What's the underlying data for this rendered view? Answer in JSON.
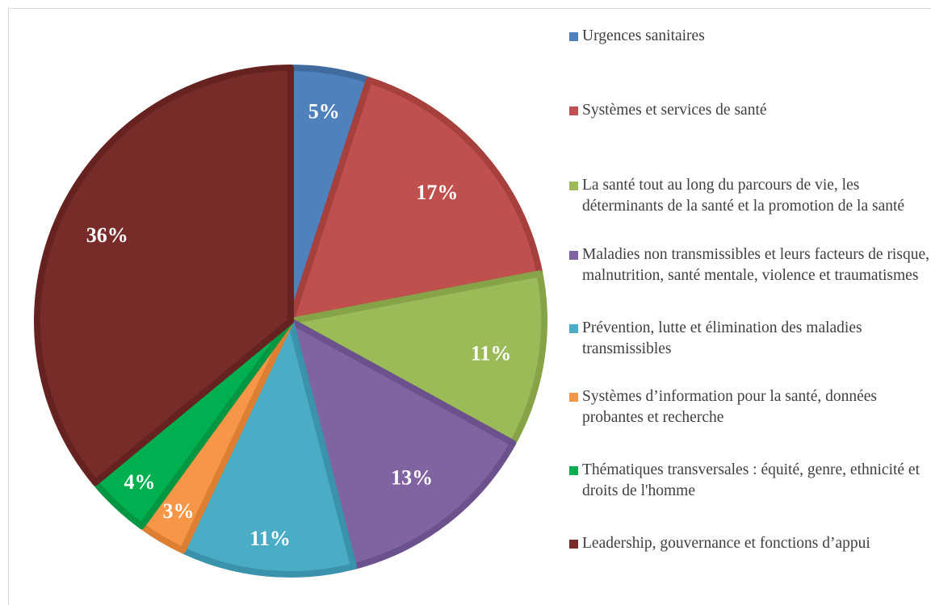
{
  "chart_data": {
    "type": "pie",
    "title": "",
    "slices": [
      {
        "name": "Urgences sanitaires",
        "value": 5,
        "label": "5%",
        "color": "#4f81bd",
        "shade": "#3f6b9f"
      },
      {
        "name": "Systèmes et services de santé",
        "value": 17,
        "label": "17%",
        "color": "#c0504d",
        "shade": "#a5403d"
      },
      {
        "name": "La santé tout au long du parcours de vie, les déterminants de la santé et la promotion de la santé",
        "value": 11,
        "label": "11%",
        "color": "#9bbb59",
        "shade": "#86a347"
      },
      {
        "name": "Maladies non transmissibles et leurs facteurs de risque, malnutrition, santé mentale, violence et traumatismes",
        "value": 13,
        "label": "13%",
        "color": "#8064a2",
        "shade": "#6c528c"
      },
      {
        "name": "Prévention, lutte et élimination des maladies transmissibles",
        "value": 11,
        "label": "11%",
        "color": "#4bacc6",
        "shade": "#3b93ab"
      },
      {
        "name": "Systèmes d’information pour la santé, données probantes et recherche",
        "value": 3,
        "label": "3%",
        "color": "#f79646",
        "shade": "#dc7f33"
      },
      {
        "name": "Thématiques transversales : équité, genre, ethnicité et droits de l'homme",
        "value": 4,
        "label": "4%",
        "color": "#00b050",
        "shade": "#009642"
      },
      {
        "name": "Leadership, gouvernance et fonctions d’appui",
        "value": 36,
        "label": "36%",
        "color": "#772c2a",
        "shade": "#652220"
      }
    ],
    "legend_position": "right"
  }
}
